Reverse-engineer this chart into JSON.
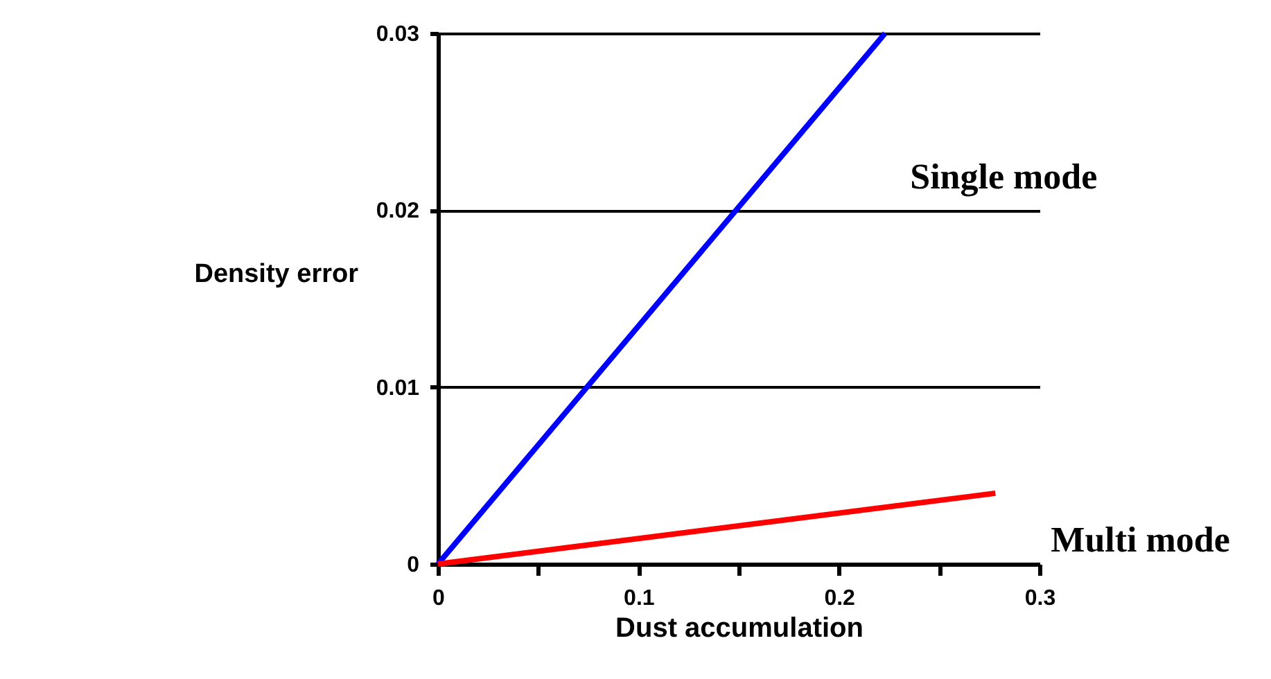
{
  "chart_data": {
    "type": "line",
    "xlabel": "Dust accumulation",
    "ylabel": "Density error",
    "xlim": [
      0,
      0.3
    ],
    "ylim": [
      0,
      0.03
    ],
    "xticks": [
      0,
      {
        "value": 0.05,
        "label": null
      },
      0.1,
      {
        "value": 0.15,
        "label": null
      },
      0.2,
      {
        "value": 0.25,
        "label": null
      },
      0.3
    ],
    "yticks": [
      0,
      0.01,
      0.02,
      0.03
    ],
    "grid": "y",
    "series": [
      {
        "name": "Single mode",
        "color": "#0000ff",
        "x": [
          0,
          0.223
        ],
        "values": [
          0,
          0.03
        ]
      },
      {
        "name": "Multi mode",
        "color": "#ff0000",
        "x": [
          0,
          0.278
        ],
        "values": [
          0,
          0.004
        ]
      }
    ]
  }
}
